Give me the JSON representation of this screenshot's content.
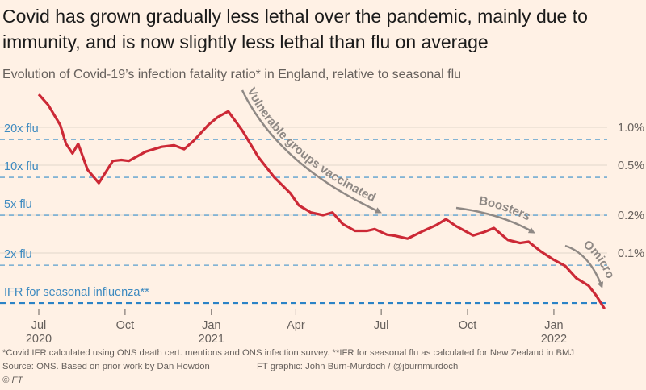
{
  "title": "Covid has grown gradually less lethal over the pandemic, mainly due to immunity, and is now slightly less lethal than flu on average",
  "subtitle": "Evolution of Covid-19’s infection fatality ratio* in England, relative to seasonal flu",
  "footnotes": {
    "note": "*Covid IFR calculated using ONS death cert. mentions and ONS infection survey. **IFR for seasonal flu as calculated for New Zealand in BMJ",
    "source": "Source: ONS. Based on prior work by Dan Howdon",
    "credit": "FT graphic: John Burn-Murdoch / @jburnmurdoch",
    "copyright": "© FT"
  },
  "colors": {
    "background": "#fff1e5",
    "line": "#cc2936",
    "flu_lines": "#3d8ac0",
    "annotation": "#8f8985"
  },
  "chart_data": {
    "type": "line",
    "y_scale": "log",
    "y_unit": "IFR %",
    "ylim": [
      0.036,
      1.9
    ],
    "grid": true,
    "y_ticks": [
      {
        "value": 1.0,
        "label": "1.0%"
      },
      {
        "value": 0.5,
        "label": "0.5%"
      },
      {
        "value": 0.2,
        "label": "0.2%"
      },
      {
        "value": 0.1,
        "label": "0.1%"
      }
    ],
    "flu_reference": {
      "ifr": 0.04,
      "lines": [
        {
          "multiple": 20,
          "label": "20x flu"
        },
        {
          "multiple": 10,
          "label": "10x flu"
        },
        {
          "multiple": 5,
          "label": "5x flu"
        },
        {
          "multiple": 2,
          "label": "2x flu"
        },
        {
          "multiple": 1,
          "label": "IFR for seasonal influenza**"
        }
      ]
    },
    "x_ticks": [
      {
        "date": "2020-07-01",
        "label": "Jul",
        "year": "2020"
      },
      {
        "date": "2020-10-01",
        "label": "Oct",
        "year": ""
      },
      {
        "date": "2021-01-01",
        "label": "Jan",
        "year": "2021"
      },
      {
        "date": "2021-04-01",
        "label": "Apr",
        "year": ""
      },
      {
        "date": "2021-07-01",
        "label": "Jul",
        "year": ""
      },
      {
        "date": "2021-10-01",
        "label": "Oct",
        "year": ""
      },
      {
        "date": "2022-01-01",
        "label": "Jan",
        "year": "2022"
      }
    ],
    "annotations": [
      {
        "text": "Vulnerable groups vaccinated",
        "from": "2021-02-01",
        "to": "2021-06-30"
      },
      {
        "text": "Boosters",
        "from": "2021-09-10",
        "to": "2021-12-05"
      },
      {
        "text": "Omicron",
        "from": "2021-12-15",
        "to": "2022-02-15"
      }
    ],
    "series": [
      {
        "x": [
          "2020-07-01",
          "2020-07-11",
          "2020-07-24",
          "2020-07-30",
          "2020-08-06",
          "2020-08-12",
          "2020-08-22",
          "2020-09-03",
          "2020-09-18",
          "2020-09-27",
          "2020-10-05",
          "2020-10-23",
          "2020-11-09",
          "2020-11-22",
          "2020-12-03",
          "2020-12-13",
          "2020-12-29",
          "2021-01-08",
          "2021-01-19",
          "2021-02-03",
          "2021-02-20",
          "2021-03-09",
          "2021-03-26",
          "2021-04-04",
          "2021-04-17",
          "2021-04-30",
          "2021-05-10",
          "2021-05-21",
          "2021-06-03",
          "2021-06-16",
          "2021-06-24",
          "2021-07-07",
          "2021-07-16",
          "2021-07-29",
          "2021-08-15",
          "2021-08-28",
          "2021-09-08",
          "2021-09-18",
          "2021-10-07",
          "2021-10-19",
          "2021-10-29",
          "2021-11-13",
          "2021-11-26",
          "2021-12-05",
          "2021-12-18",
          "2021-12-31",
          "2022-01-13",
          "2022-01-25",
          "2022-02-07",
          "2022-02-15",
          "2022-02-24"
        ],
        "y": [
          1.83,
          1.51,
          1.04,
          0.74,
          0.62,
          0.74,
          0.46,
          0.36,
          0.54,
          0.55,
          0.54,
          0.64,
          0.7,
          0.72,
          0.67,
          0.78,
          1.05,
          1.21,
          1.34,
          0.94,
          0.58,
          0.4,
          0.3,
          0.24,
          0.21,
          0.2,
          0.21,
          0.17,
          0.15,
          0.15,
          0.155,
          0.14,
          0.137,
          0.13,
          0.15,
          0.166,
          0.186,
          0.165,
          0.138,
          0.147,
          0.158,
          0.127,
          0.12,
          0.123,
          0.103,
          0.089,
          0.079,
          0.063,
          0.055,
          0.046,
          0.036
        ]
      }
    ]
  }
}
